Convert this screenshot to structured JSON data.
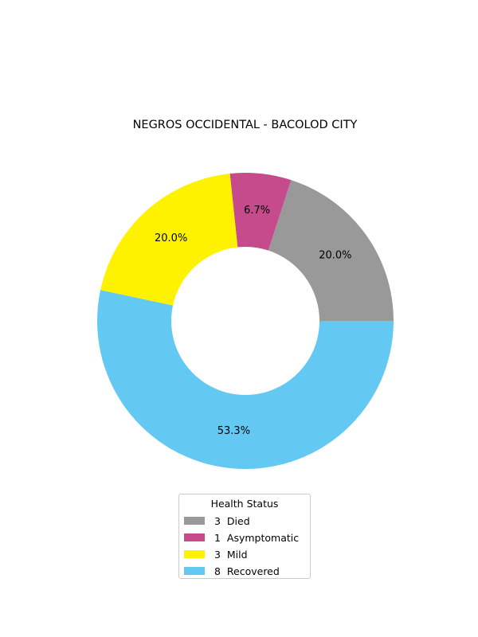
{
  "chart_data": {
    "type": "pie",
    "donut": true,
    "title": "NEGROS OCCIDENTAL - BACOLOD CITY",
    "categories": [
      "Died",
      "Asymptomatic",
      "Mild",
      "Recovered"
    ],
    "values": [
      3,
      1,
      3,
      8
    ],
    "percent_labels": [
      "20.0%",
      "6.7%",
      "20.0%",
      "53.3%"
    ],
    "colors": [
      "#999999",
      "#c64b8c",
      "#fff200",
      "#63c9f2"
    ],
    "legend": {
      "title": "Health Status",
      "placement": "bottom-center",
      "entries": [
        "3  Died",
        "1  Asymptomatic",
        "3  Mild",
        "8  Recovered"
      ]
    }
  }
}
